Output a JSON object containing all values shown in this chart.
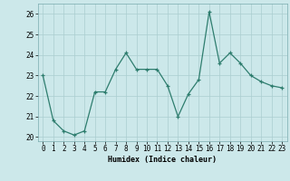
{
  "x": [
    0,
    1,
    2,
    3,
    4,
    5,
    6,
    7,
    8,
    9,
    10,
    11,
    12,
    13,
    14,
    15,
    16,
    17,
    18,
    19,
    20,
    21,
    22,
    23
  ],
  "y": [
    23.0,
    20.8,
    20.3,
    20.1,
    20.3,
    22.2,
    22.2,
    23.3,
    24.1,
    23.3,
    23.3,
    23.3,
    22.5,
    21.0,
    22.1,
    22.8,
    26.1,
    23.6,
    24.1,
    23.6,
    23.0,
    22.7,
    22.5,
    22.4
  ],
  "line_color": "#2e7d6e",
  "marker": "+",
  "bg_color": "#cce8ea",
  "grid_color": "#aacdd0",
  "xlabel": "Humidex (Indice chaleur)",
  "ylim": [
    19.8,
    26.5
  ],
  "yticks": [
    20,
    21,
    22,
    23,
    24,
    25,
    26
  ],
  "xlim": [
    -0.5,
    23.5
  ],
  "xticks": [
    0,
    1,
    2,
    3,
    4,
    5,
    6,
    7,
    8,
    9,
    10,
    11,
    12,
    13,
    14,
    15,
    16,
    17,
    18,
    19,
    20,
    21,
    22,
    23
  ],
  "axis_fontsize": 6.0,
  "tick_fontsize": 5.5,
  "linewidth": 0.9,
  "markersize": 3.0,
  "markeredgewidth": 0.9
}
